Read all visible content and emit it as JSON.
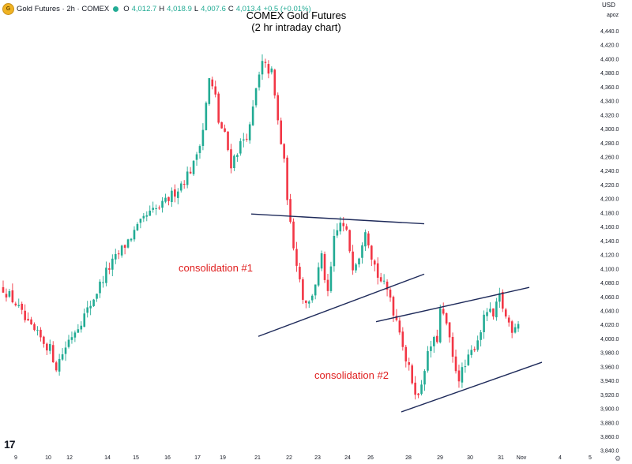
{
  "header": {
    "symbol": "Gold Futures · 2h · COMEX",
    "open_label": "O",
    "open": "4,012.7",
    "high_label": "H",
    "high": "4,018.9",
    "low_label": "L",
    "low": "4,007.6",
    "close_label": "C",
    "close": "4,013.4",
    "change": "+0.5 (+0.01%)"
  },
  "currency": "USD",
  "scale_mode": "apoz",
  "tv_logo": "17",
  "chart_data": {
    "type": "candlestick",
    "title_line1": "COMEX Gold Futures",
    "title_line2": "(2 hr intraday chart)",
    "x_ticks": [
      "9",
      "10",
      "12",
      "14",
      "15",
      "16",
      "17",
      "19",
      "21",
      "22",
      "23",
      "24",
      "26",
      "28",
      "29",
      "30",
      "31",
      "Nov",
      "4",
      "5"
    ],
    "y_ticks": [
      "4,440.0",
      "4,420.0",
      "4,400.0",
      "4,380.0",
      "4,360.0",
      "4,340.0",
      "4,320.0",
      "4,300.0",
      "4,280.0",
      "4,260.0",
      "4,240.0",
      "4,220.0",
      "4,200.0",
      "4,180.0",
      "4,160.0",
      "4,140.0",
      "4,120.0",
      "4,100.0",
      "4,080.0",
      "4,060.0",
      "4,040.0",
      "4,020.0",
      "4,000.0",
      "3,980.0",
      "3,960.0",
      "3,940.0",
      "3,920.0",
      "3,900.0",
      "3,880.0",
      "3,860.0",
      "3,840.0"
    ],
    "ylim": [
      3836,
      4452
    ],
    "y_scale": "linear",
    "grid": false,
    "up_color": "#22ab94",
    "down_color": "#f23645",
    "trendline_color": "#1e2a5a",
    "annotation_color": "#e02020",
    "path_knots": [
      [
        0,
        4072
      ],
      [
        4,
        4050
      ],
      [
        8,
        4018
      ],
      [
        12,
        4000
      ],
      [
        15,
        3985
      ],
      [
        17,
        3960
      ],
      [
        21,
        3998
      ],
      [
        27,
        4040
      ],
      [
        33,
        4095
      ],
      [
        40,
        4140
      ],
      [
        46,
        4175
      ],
      [
        51,
        4190
      ],
      [
        56,
        4215
      ],
      [
        61,
        4248
      ],
      [
        64,
        4300
      ],
      [
        66,
        4370
      ],
      [
        68,
        4345
      ],
      [
        69,
        4310
      ],
      [
        71,
        4290
      ],
      [
        73,
        4250
      ],
      [
        76,
        4278
      ],
      [
        79,
        4300
      ],
      [
        81,
        4355
      ],
      [
        83,
        4392
      ],
      [
        86,
        4380
      ],
      [
        88,
        4310
      ],
      [
        90,
        4250
      ],
      [
        92,
        4160
      ],
      [
        94,
        4110
      ],
      [
        96,
        4060
      ],
      [
        98,
        4050
      ],
      [
        100,
        4080
      ],
      [
        102,
        4115
      ],
      [
        104,
        4060
      ],
      [
        106,
        4140
      ],
      [
        108,
        4165
      ],
      [
        110,
        4150
      ],
      [
        112,
        4105
      ],
      [
        114,
        4120
      ],
      [
        116,
        4160
      ],
      [
        118,
        4120
      ],
      [
        120,
        4090
      ],
      [
        122,
        4075
      ],
      [
        124,
        4060
      ],
      [
        125,
        4040
      ],
      [
        127,
        4015
      ],
      [
        129,
        3970
      ],
      [
        131,
        3940
      ],
      [
        133,
        3915
      ],
      [
        135,
        3960
      ],
      [
        137,
        3990
      ],
      [
        139,
        4000
      ],
      [
        140,
        4040
      ],
      [
        142,
        4020
      ],
      [
        144,
        3970
      ],
      [
        146,
        3945
      ],
      [
        148,
        3960
      ],
      [
        150,
        3980
      ],
      [
        152,
        4000
      ],
      [
        155,
        4040
      ],
      [
        157,
        4030
      ],
      [
        159,
        4060
      ],
      [
        161,
        4030
      ],
      [
        163,
        4015
      ],
      [
        165,
        4025
      ]
    ],
    "candle_count": 166,
    "x_range": [
      0,
      167
    ],
    "trendlines": [
      {
        "x1": 0,
        "y1": 4178,
        "x2": 1,
        "y2": 4164
      },
      {
        "x1": 0,
        "y1": 4003,
        "x2": 1,
        "y2": 4092
      },
      {
        "x1": 0,
        "y1": 4024,
        "x2": 1,
        "y2": 4073
      },
      {
        "x1": 0,
        "y1": 3895,
        "x2": 1,
        "y2": 3966
      }
    ],
    "annotations": [
      "consolidation #1",
      "consolidation #2"
    ]
  }
}
